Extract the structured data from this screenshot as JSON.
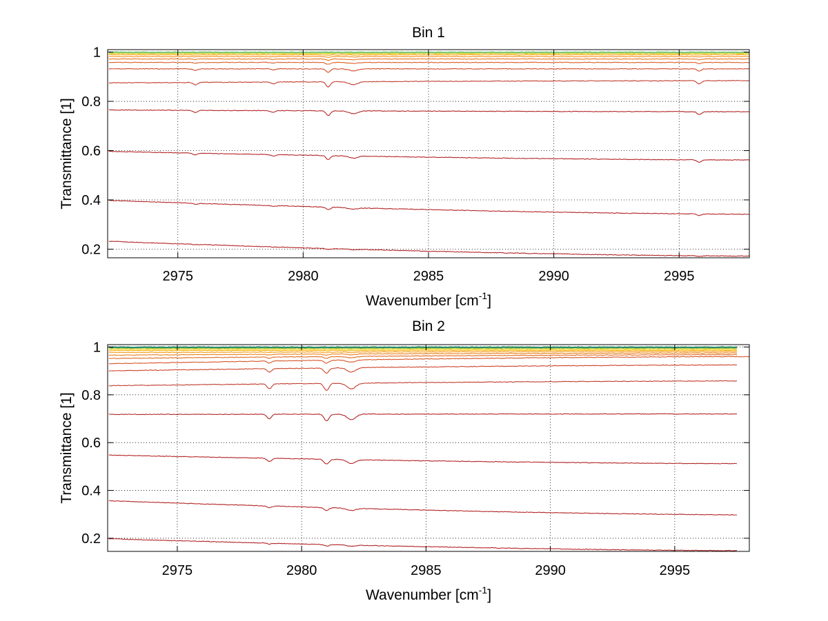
{
  "chart_data": [
    {
      "type": "line",
      "title": "Bin 1",
      "xlabel": "Wavenumber [cm",
      "xlabel_sup": "-1",
      "xlabel_end": "]",
      "ylabel": "Transmittance [1]",
      "xlim": [
        2972.2,
        2997.8
      ],
      "ylim": [
        0.165,
        1.01
      ],
      "xticks": [
        2975,
        2980,
        2985,
        2990,
        2995
      ],
      "xtick_labels": [
        "2975",
        "2980",
        "2985",
        "2990",
        "2995"
      ],
      "yticks": [
        0.2,
        0.4,
        0.6,
        0.8,
        1
      ],
      "ytick_labels": [
        "0.2",
        "0.4",
        "0.6",
        "0.8",
        "1"
      ],
      "grid": true,
      "absorption_lines": [
        {
          "x": 2975.7,
          "width": 0.12,
          "depth": 0.45
        },
        {
          "x": 2978.8,
          "width": 0.12,
          "depth": 0.35
        },
        {
          "x": 2981.0,
          "width": 0.12,
          "depth": 1.0
        },
        {
          "x": 2982.0,
          "width": 0.25,
          "depth": 0.55
        },
        {
          "x": 2995.8,
          "width": 0.12,
          "depth": 0.6
        }
      ],
      "series": [
        {
          "color": "#b22222",
          "start": 0.232,
          "end": 0.172,
          "line_depth": 0.004
        },
        {
          "color": "#b22222",
          "start": 0.398,
          "end": 0.342,
          "line_depth": 0.01
        },
        {
          "color": "#b22222",
          "start": 0.597,
          "end": 0.562,
          "line_depth": 0.016
        },
        {
          "color": "#b22222",
          "start": 0.765,
          "end": 0.758,
          "line_depth": 0.02
        },
        {
          "color": "#c0392b",
          "start": 0.875,
          "end": 0.884,
          "line_depth": 0.022
        },
        {
          "color": "#d04525",
          "start": 0.932,
          "end": 0.932,
          "line_depth": 0.014
        },
        {
          "color": "#dd5a22",
          "start": 0.958,
          "end": 0.958,
          "line_depth": 0.008
        },
        {
          "color": "#e8731c",
          "start": 0.972,
          "end": 0.972,
          "line_depth": 0.005
        },
        {
          "color": "#f08c1a",
          "start": 0.982,
          "end": 0.982,
          "line_depth": 0.003
        },
        {
          "color": "#f7a817",
          "start": 0.989,
          "end": 0.989,
          "line_depth": 0.002
        },
        {
          "color": "#f5c518",
          "start": 0.994,
          "end": 0.994,
          "line_depth": 0.001
        },
        {
          "color": "#d9d927",
          "start": 0.997,
          "end": 0.997,
          "line_depth": 0.0
        },
        {
          "color": "#7fc97f",
          "start": 0.999,
          "end": 0.999,
          "line_depth": 0.0
        }
      ]
    },
    {
      "type": "line",
      "title": "Bin 2",
      "xlabel": "Wavenumber [cm",
      "xlabel_sup": "-1",
      "xlabel_end": "]",
      "ylabel": "Transmittance [1]",
      "xlim": [
        2972.2,
        2998.0
      ],
      "ylim": [
        0.145,
        1.01
      ],
      "xticks": [
        2975,
        2980,
        2985,
        2990,
        2995
      ],
      "xtick_labels": [
        "2975",
        "2980",
        "2985",
        "2990",
        "2995"
      ],
      "yticks": [
        0.2,
        0.4,
        0.6,
        0.8,
        1
      ],
      "ytick_labels": [
        "0.2",
        "0.4",
        "0.6",
        "0.8",
        "1"
      ],
      "grid": true,
      "absorption_lines": [
        {
          "x": 2978.7,
          "width": 0.12,
          "depth": 0.7
        },
        {
          "x": 2981.0,
          "width": 0.14,
          "depth": 1.0
        },
        {
          "x": 2982.0,
          "width": 0.25,
          "depth": 0.8
        }
      ],
      "series": [
        {
          "color": "#b22222",
          "start": 0.198,
          "end": 0.148,
          "line_depth": 0.006,
          "x_end": 2997.5
        },
        {
          "color": "#b22222",
          "start": 0.357,
          "end": 0.298,
          "line_depth": 0.012,
          "x_end": 2997.5
        },
        {
          "color": "#b22222",
          "start": 0.548,
          "end": 0.512,
          "line_depth": 0.02,
          "x_end": 2997.5
        },
        {
          "color": "#b22222",
          "start": 0.718,
          "end": 0.72,
          "line_depth": 0.028,
          "x_end": 2997.5
        },
        {
          "color": "#c0392b",
          "start": 0.838,
          "end": 0.858,
          "line_depth": 0.03,
          "x_end": 2997.5
        },
        {
          "color": "#cc4026",
          "start": 0.9,
          "end": 0.925,
          "line_depth": 0.022,
          "x_end": 2997.5
        },
        {
          "color": "#d65323",
          "start": 0.93,
          "end": 0.96,
          "line_depth": 0.012,
          "x_end": 2998.0
        },
        {
          "color": "#e06a1f",
          "start": 0.952,
          "end": 0.968,
          "line_depth": 0.007,
          "x_end": 2997.5
        },
        {
          "color": "#ea801c",
          "start": 0.966,
          "end": 0.975,
          "line_depth": 0.004,
          "x_end": 2997.5
        },
        {
          "color": "#f39a18",
          "start": 0.977,
          "end": 0.981,
          "line_depth": 0.003,
          "x_end": 2997.5
        },
        {
          "color": "#f7b516",
          "start": 0.985,
          "end": 0.986,
          "line_depth": 0.002,
          "x_end": 2997.5
        },
        {
          "color": "#f5cf1b",
          "start": 0.99,
          "end": 0.99,
          "line_depth": 0.001,
          "x_end": 2997.5
        },
        {
          "color": "#a3c93a",
          "start": 0.996,
          "end": 0.996,
          "line_depth": 0.0,
          "x_end": 2997.5
        },
        {
          "color": "#2a8a6a",
          "start": 0.999,
          "end": 0.999,
          "line_depth": 0.0,
          "x_end": 2997.5
        }
      ]
    }
  ]
}
